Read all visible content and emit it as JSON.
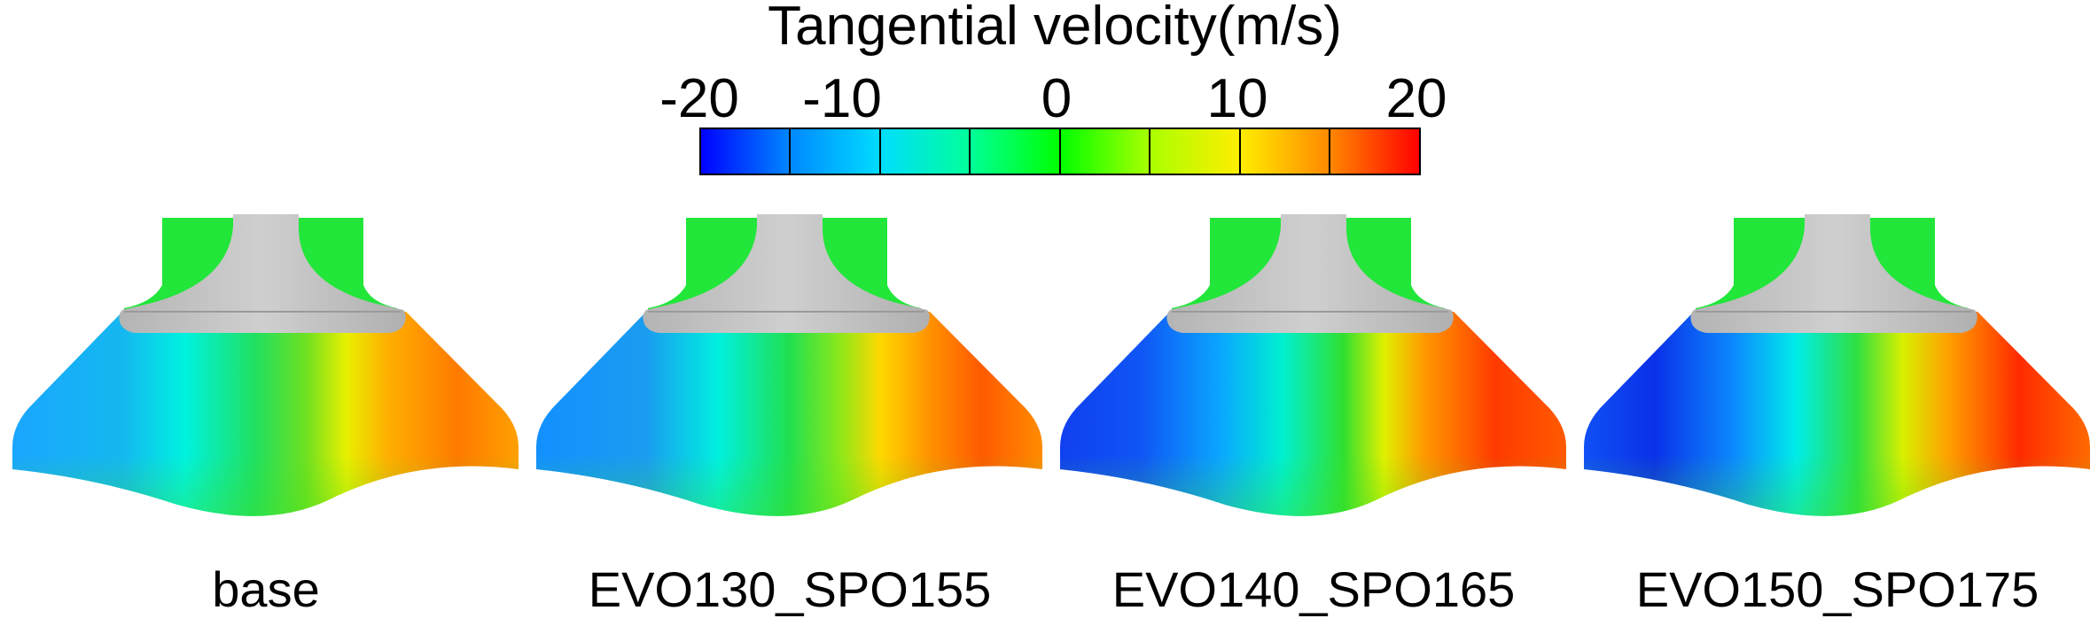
{
  "colorbar": {
    "title": "Tangential velocity(m/s)",
    "ticks": [
      "-20",
      "-10",
      "0",
      "10",
      "20"
    ],
    "colors": [
      "#0000ff",
      "#00aaff",
      "#00ffdd",
      "#00ff66",
      "#22dd00",
      "#bbff00",
      "#ffff00",
      "#ffaa00",
      "#ff5500",
      "#ff0000"
    ]
  },
  "panels": [
    {
      "label": "base"
    },
    {
      "label": "EVO130_SPO155"
    },
    {
      "label": "EVO140_SPO165"
    },
    {
      "label": "EVO150_SPO175"
    }
  ],
  "valve_color": "#c0c0c0"
}
